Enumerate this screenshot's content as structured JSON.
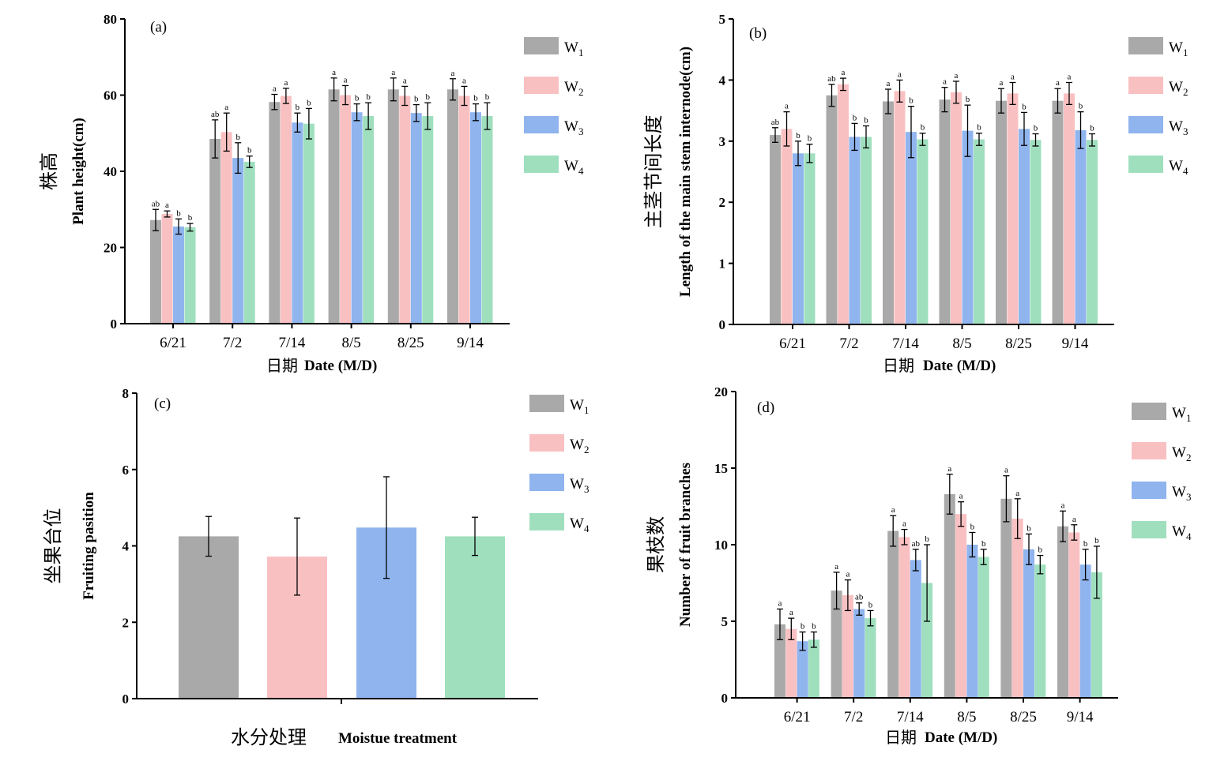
{
  "colors": {
    "W1": "#a9a9a9",
    "W2": "#f9c0c2",
    "W3": "#8fb4ee",
    "W4": "#9fdfbe",
    "axis": "#000000"
  },
  "legend": [
    {
      "base": "W",
      "sub": "1",
      "color": "#a9a9a9"
    },
    {
      "base": "W",
      "sub": "2",
      "color": "#f9c0c2"
    },
    {
      "base": "W",
      "sub": "3",
      "color": "#8fb4ee"
    },
    {
      "base": "W",
      "sub": "4",
      "color": "#9fdfbe"
    }
  ],
  "chart_data": [
    {
      "type": "bar",
      "panel": "(a)",
      "ylabel_cn": "株高",
      "ylabel": "Plant height(cm)",
      "xlabel_cn": "日期",
      "xlabel": "Date (M/D)",
      "categories": [
        "6/21",
        "7/2",
        "7/14",
        "8/5",
        "8/25",
        "9/14"
      ],
      "ylim": [
        0,
        80
      ],
      "yticks": [
        "0",
        "20",
        "40",
        "60",
        "80"
      ],
      "series": [
        {
          "name": "W1",
          "values": [
            27.2,
            48.5,
            58.2,
            61.5,
            61.5,
            61.5
          ],
          "errors": [
            2.8,
            5,
            2,
            3,
            3,
            2.8
          ],
          "sig": [
            "ab",
            "ab",
            "a",
            "a",
            "a",
            "a"
          ]
        },
        {
          "name": "W2",
          "values": [
            28.8,
            50.3,
            59.8,
            60,
            59.8,
            59.8
          ],
          "errors": [
            0.8,
            5,
            2,
            2.5,
            2.5,
            2.5
          ],
          "sig": [
            "a",
            "a",
            "a",
            "a",
            "a",
            "a"
          ]
        },
        {
          "name": "W3",
          "values": [
            25.5,
            43.5,
            52.8,
            55.5,
            55.3,
            55.5
          ],
          "errors": [
            2,
            4,
            2.5,
            2.2,
            2.2,
            2.2
          ],
          "sig": [
            "b",
            "b",
            "b",
            "b",
            "b",
            "b"
          ]
        },
        {
          "name": "W4",
          "values": [
            25.3,
            42.5,
            52.5,
            54.5,
            54.5,
            54.5
          ],
          "errors": [
            1,
            1.5,
            4,
            3.5,
            3.5,
            3.5
          ],
          "sig": [
            "b",
            "b",
            "b",
            "b",
            "b",
            "b"
          ]
        }
      ]
    },
    {
      "type": "bar",
      "panel": "(b)",
      "ylabel_cn": "主茎节间长度",
      "ylabel": "Length of the main stem internode(cm)",
      "xlabel_cn": "日期",
      "xlabel": "Date (M/D)",
      "categories": [
        "6/21",
        "7/2",
        "7/14",
        "8/5",
        "8/25",
        "9/14"
      ],
      "ylim": [
        0,
        5
      ],
      "yticks": [
        "0",
        "1",
        "2",
        "3",
        "4",
        "5"
      ],
      "series": [
        {
          "name": "W1",
          "values": [
            3.1,
            3.75,
            3.65,
            3.68,
            3.66,
            3.66
          ],
          "errors": [
            0.12,
            0.18,
            0.2,
            0.2,
            0.2,
            0.2
          ],
          "sig": [
            "ab",
            "ab",
            "a",
            "a",
            "a",
            "a"
          ]
        },
        {
          "name": "W2",
          "values": [
            3.2,
            3.93,
            3.82,
            3.8,
            3.78,
            3.78
          ],
          "errors": [
            0.28,
            0.1,
            0.18,
            0.18,
            0.18,
            0.18
          ],
          "sig": [
            "a",
            "a",
            "a",
            "a",
            "a",
            "a"
          ]
        },
        {
          "name": "W3",
          "values": [
            2.8,
            3.07,
            3.15,
            3.17,
            3.2,
            3.18
          ],
          "errors": [
            0.2,
            0.22,
            0.42,
            0.42,
            0.27,
            0.3
          ],
          "sig": [
            "b",
            "b",
            "b",
            "b",
            "b",
            "b"
          ]
        },
        {
          "name": "W4",
          "values": [
            2.8,
            3.07,
            3.03,
            3.03,
            3.02,
            3.02
          ],
          "errors": [
            0.15,
            0.18,
            0.1,
            0.1,
            0.1,
            0.1
          ],
          "sig": [
            "b",
            "b",
            "b",
            "b",
            "b",
            "b"
          ]
        }
      ]
    },
    {
      "type": "bar",
      "panel": "(c)",
      "ylabel_cn": "坐果台位",
      "ylabel": "Fruiting pasition",
      "xlabel_cn": "水分处理",
      "xlabel": "Moistue treatment",
      "categories": [
        "W1",
        "W2",
        "W3",
        "W4"
      ],
      "ylim": [
        0,
        8
      ],
      "yticks": [
        "0",
        "2",
        "4",
        "6",
        "8"
      ],
      "values": [
        4.25,
        3.72,
        4.48,
        4.25
      ],
      "errors": [
        0.52,
        1.01,
        1.33,
        0.5
      ]
    },
    {
      "type": "bar",
      "panel": "(d)",
      "ylabel_cn": "果枝数",
      "ylabel": "Number of fruit branches",
      "xlabel_cn": "日期",
      "xlabel": "Date (M/D)",
      "categories": [
        "6/21",
        "7/2",
        "7/14",
        "8/5",
        "8/25",
        "9/14"
      ],
      "ylim": [
        0,
        20
      ],
      "yticks": [
        "0",
        "5",
        "10",
        "15",
        "20"
      ],
      "series": [
        {
          "name": "W1",
          "values": [
            4.8,
            7,
            10.9,
            13.3,
            13,
            11.2
          ],
          "errors": [
            1,
            1.2,
            1,
            1.3,
            1.5,
            1
          ],
          "sig": [
            "a",
            "a",
            "a",
            "a",
            "a",
            "a"
          ]
        },
        {
          "name": "W2",
          "values": [
            4.5,
            6.7,
            10.5,
            12,
            11.7,
            10.8
          ],
          "errors": [
            0.7,
            1,
            0.5,
            0.8,
            1.3,
            0.5
          ],
          "sig": [
            "a",
            "a",
            "a",
            "a",
            "a",
            "a"
          ]
        },
        {
          "name": "W3",
          "values": [
            3.7,
            5.8,
            9,
            10,
            9.7,
            8.7
          ],
          "errors": [
            0.6,
            0.4,
            0.7,
            0.8,
            1,
            1
          ],
          "sig": [
            "b",
            "ab",
            "ab",
            "b",
            "b",
            "b"
          ]
        },
        {
          "name": "W4",
          "values": [
            3.8,
            5.2,
            7.5,
            9.2,
            8.7,
            8.2
          ],
          "errors": [
            0.5,
            0.5,
            2.5,
            0.5,
            0.6,
            1.7
          ],
          "sig": [
            "b",
            "b",
            "b",
            "b",
            "b",
            "b"
          ]
        }
      ]
    }
  ]
}
